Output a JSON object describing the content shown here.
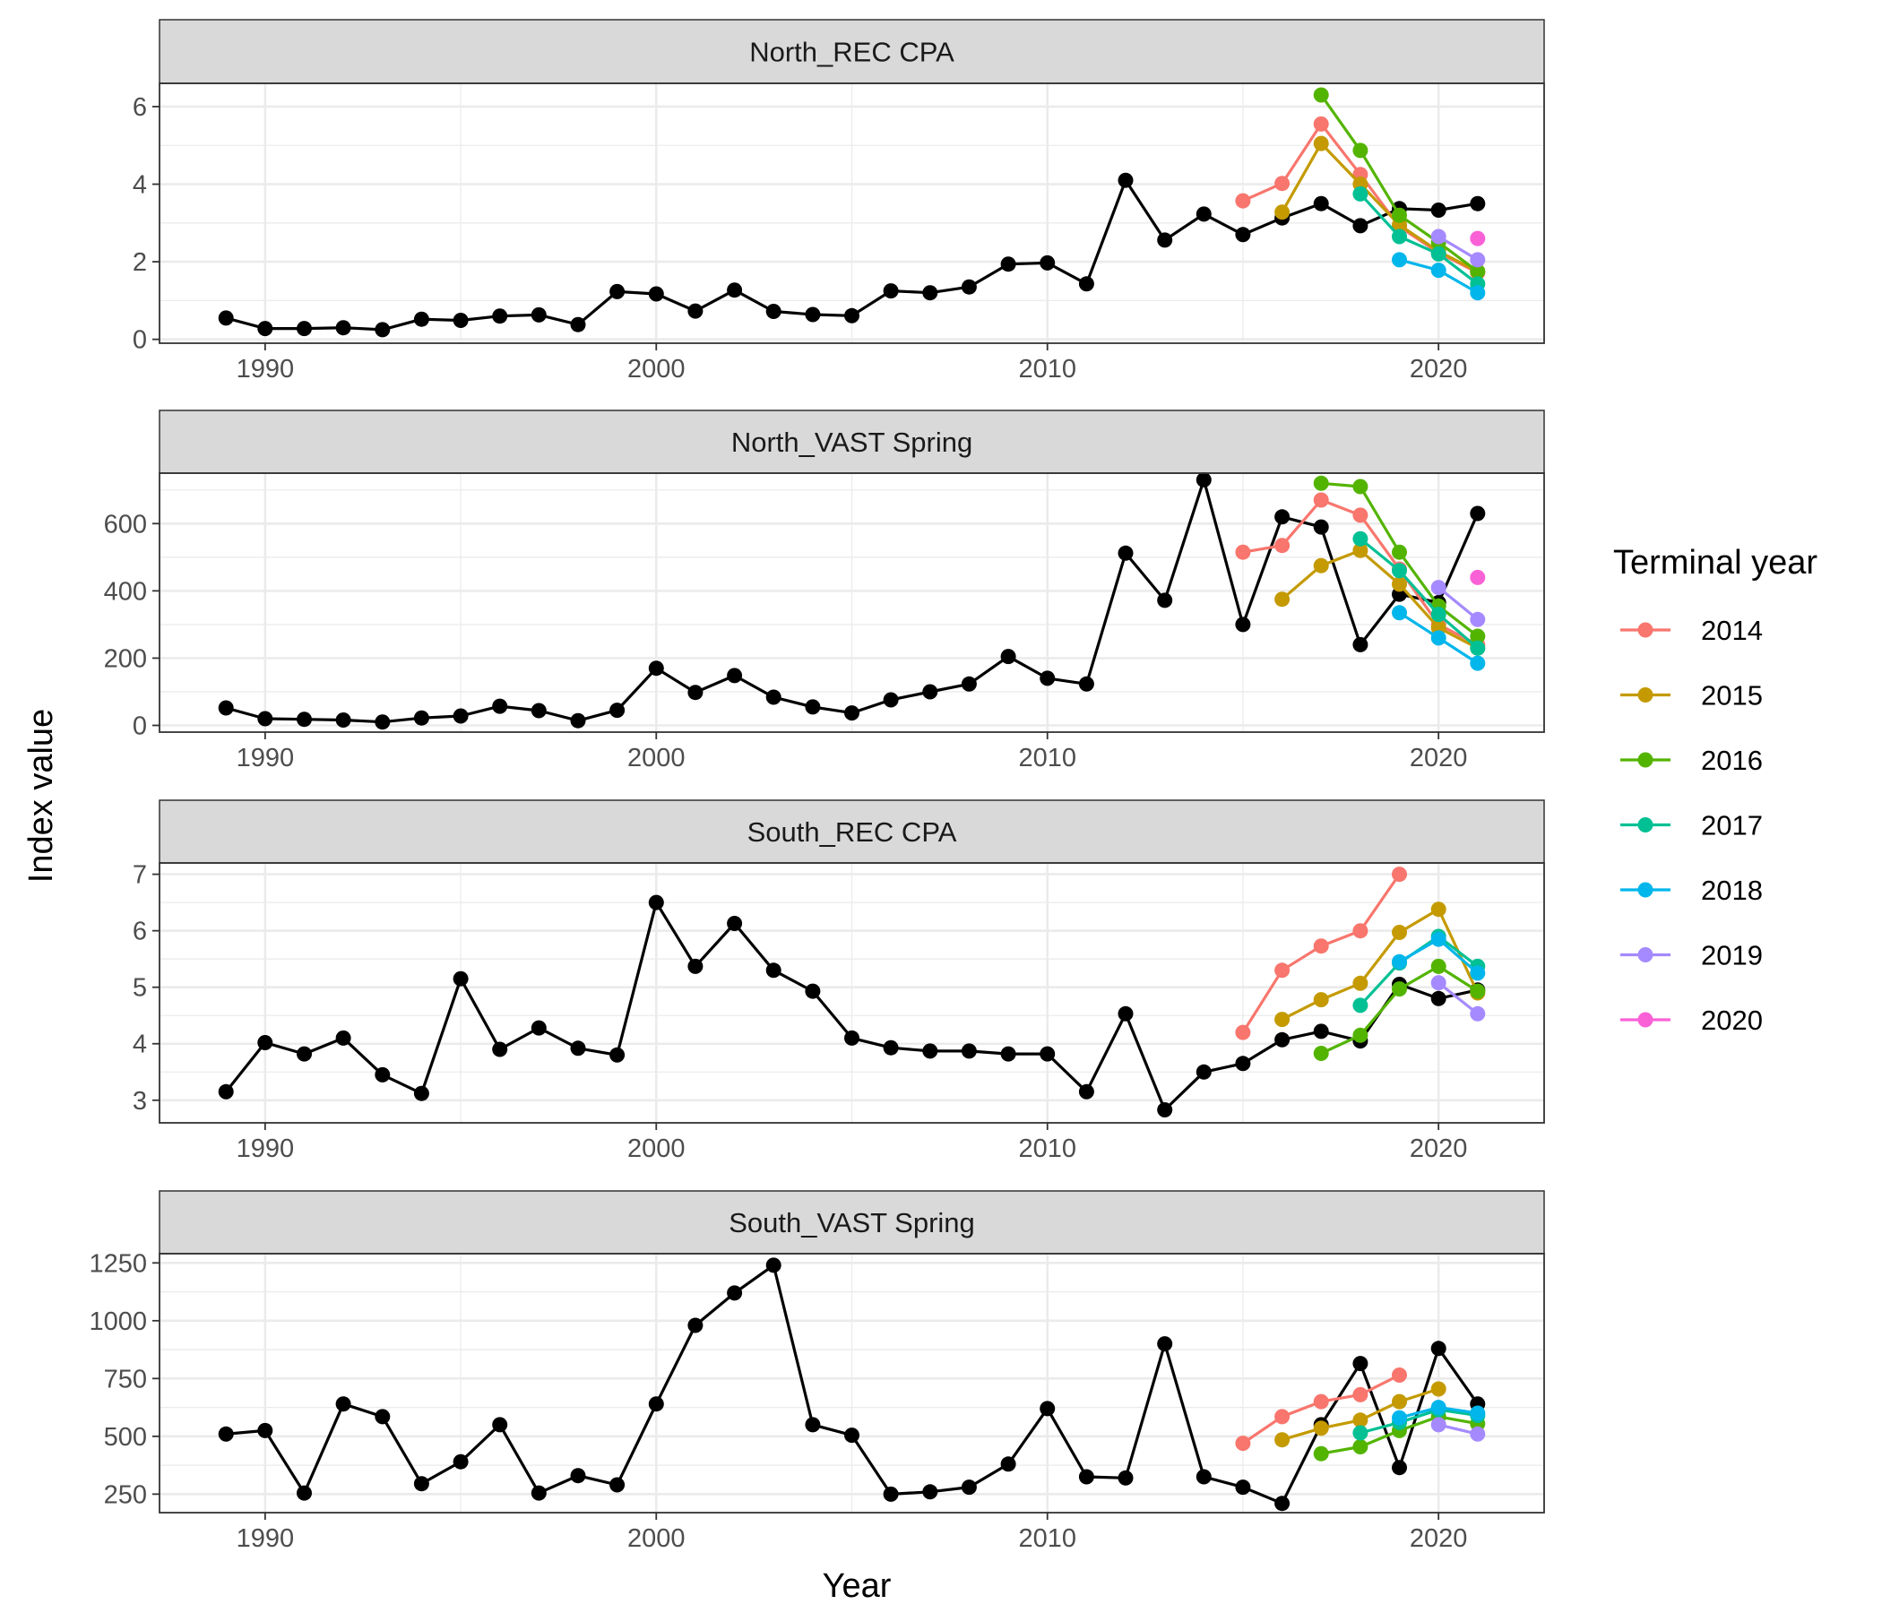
{
  "chart_data": {
    "type": "line",
    "xlabel": "Year",
    "ylabel": "Index value",
    "xlim": [
      1987.3,
      2022.7
    ],
    "x_ticks": [
      1990,
      2000,
      2010,
      2020
    ],
    "legend": {
      "title": "Terminal year",
      "placement": "right",
      "entries": [
        {
          "name": "2014",
          "color": "#F8766D"
        },
        {
          "name": "2015",
          "color": "#C49A00"
        },
        {
          "name": "2016",
          "color": "#53B400"
        },
        {
          "name": "2017",
          "color": "#00C094"
        },
        {
          "name": "2018",
          "color": "#00B6EB"
        },
        {
          "name": "2019",
          "color": "#A58AFF"
        },
        {
          "name": "2020",
          "color": "#FB61D7"
        }
      ]
    },
    "panels": [
      {
        "title": "North_REC CPA",
        "ylim": [
          -0.1,
          6.6
        ],
        "y_ticks": [
          0,
          2,
          4,
          6
        ],
        "main": {
          "color": "#000000",
          "x": [
            1989,
            1990,
            1991,
            1992,
            1993,
            1994,
            1995,
            1996,
            1997,
            1998,
            1999,
            2000,
            2001,
            2002,
            2003,
            2004,
            2005,
            2006,
            2007,
            2008,
            2009,
            2010,
            2011,
            2012,
            2013,
            2014,
            2015,
            2016,
            2017,
            2018,
            2019,
            2020,
            2021
          ],
          "values": [
            0.55,
            0.28,
            0.28,
            0.3,
            0.25,
            0.52,
            0.49,
            0.6,
            0.63,
            0.38,
            1.23,
            1.17,
            0.73,
            1.27,
            0.72,
            0.64,
            0.61,
            1.25,
            1.2,
            1.35,
            1.94,
            1.97,
            1.43,
            4.1,
            2.56,
            3.23,
            2.7,
            3.13,
            3.5,
            2.93,
            3.37,
            3.33,
            3.5
          ]
        },
        "series": [
          {
            "name": "2014",
            "x": [
              2015,
              2016,
              2017,
              2018,
              2019,
              2020,
              2021
            ],
            "values": [
              3.57,
              4.02,
              5.55,
              4.25,
              2.9,
              2.23,
              1.72
            ]
          },
          {
            "name": "2015",
            "x": [
              2016,
              2017,
              2018,
              2019,
              2020,
              2021
            ],
            "values": [
              3.28,
              5.05,
              4.0,
              2.95,
              2.27,
              1.75
            ]
          },
          {
            "name": "2016",
            "x": [
              2017,
              2018,
              2019,
              2020,
              2021
            ],
            "values": [
              6.3,
              4.87,
              3.2,
              2.5,
              1.75
            ]
          },
          {
            "name": "2017",
            "x": [
              2018,
              2019,
              2020,
              2021
            ],
            "values": [
              3.75,
              2.65,
              2.2,
              1.43
            ]
          },
          {
            "name": "2018",
            "x": [
              2019,
              2020,
              2021
            ],
            "values": [
              2.05,
              1.78,
              1.2
            ]
          },
          {
            "name": "2019",
            "x": [
              2020,
              2021
            ],
            "values": [
              2.65,
              2.05
            ]
          },
          {
            "name": "2020",
            "x": [
              2021
            ],
            "values": [
              2.6
            ]
          }
        ]
      },
      {
        "title": "North_VAST Spring",
        "ylim": [
          -20,
          750
        ],
        "y_ticks": [
          0,
          200,
          400,
          600
        ],
        "main": {
          "color": "#000000",
          "x": [
            1989,
            1990,
            1991,
            1992,
            1993,
            1994,
            1995,
            1996,
            1997,
            1998,
            1999,
            2000,
            2001,
            2002,
            2003,
            2004,
            2005,
            2006,
            2007,
            2008,
            2009,
            2010,
            2011,
            2012,
            2013,
            2014,
            2015,
            2016,
            2017,
            2018,
            2019,
            2020,
            2021
          ],
          "values": [
            52,
            20,
            18,
            16,
            10,
            22,
            28,
            57,
            44,
            14,
            45,
            170,
            98,
            148,
            84,
            55,
            37,
            76,
            100,
            123,
            205,
            140,
            123,
            512,
            372,
            730,
            300,
            620,
            590,
            240,
            390,
            365,
            630
          ]
        },
        "series": [
          {
            "name": "2014",
            "x": [
              2015,
              2016,
              2017,
              2018,
              2019,
              2020,
              2021
            ],
            "values": [
              515,
              535,
              670,
              625,
              465,
              300,
              240
            ]
          },
          {
            "name": "2015",
            "x": [
              2016,
              2017,
              2018,
              2019,
              2020,
              2021
            ],
            "values": [
              375,
              475,
              520,
              420,
              290,
              230
            ]
          },
          {
            "name": "2016",
            "x": [
              2017,
              2018,
              2019,
              2020,
              2021
            ],
            "values": [
              720,
              710,
              515,
              355,
              265
            ]
          },
          {
            "name": "2017",
            "x": [
              2018,
              2019,
              2020,
              2021
            ],
            "values": [
              555,
              460,
              330,
              230
            ]
          },
          {
            "name": "2018",
            "x": [
              2019,
              2020,
              2021
            ],
            "values": [
              335,
              260,
              185
            ]
          },
          {
            "name": "2019",
            "x": [
              2020,
              2021
            ],
            "values": [
              410,
              315
            ]
          },
          {
            "name": "2020",
            "x": [
              2021
            ],
            "values": [
              440
            ]
          }
        ]
      },
      {
        "title": "South_REC CPA",
        "ylim": [
          2.6,
          7.2
        ],
        "y_ticks": [
          3,
          4,
          5,
          6,
          7
        ],
        "main": {
          "color": "#000000",
          "x": [
            1989,
            1990,
            1991,
            1992,
            1993,
            1994,
            1995,
            1996,
            1997,
            1998,
            1999,
            2000,
            2001,
            2002,
            2003,
            2004,
            2005,
            2006,
            2007,
            2008,
            2009,
            2010,
            2011,
            2012,
            2013,
            2014,
            2015,
            2016,
            2017,
            2018,
            2019,
            2020,
            2021
          ],
          "values": [
            3.15,
            4.02,
            3.82,
            4.1,
            3.45,
            3.12,
            5.15,
            3.9,
            4.28,
            3.92,
            3.8,
            6.5,
            5.37,
            6.13,
            5.3,
            4.93,
            4.1,
            3.93,
            3.87,
            3.87,
            3.82,
            3.82,
            3.15,
            4.53,
            2.83,
            3.5,
            3.65,
            4.07,
            4.22,
            4.05,
            5.05,
            4.8,
            4.95
          ]
        },
        "series": [
          {
            "name": "2014",
            "x": [
              2015,
              2016,
              2017,
              2018,
              2019
            ],
            "values": [
              4.2,
              5.3,
              5.73,
              6.0,
              7.0
            ]
          },
          {
            "name": "2015",
            "x": [
              2016,
              2017,
              2018,
              2019,
              2020,
              2021
            ],
            "values": [
              4.43,
              4.78,
              5.07,
              5.97,
              6.38,
              4.9
            ]
          },
          {
            "name": "2016",
            "x": [
              2017,
              2018,
              2019,
              2020,
              2021
            ],
            "values": [
              3.83,
              4.15,
              4.97,
              5.37,
              4.93
            ]
          },
          {
            "name": "2017",
            "x": [
              2018,
              2019,
              2020,
              2021
            ],
            "values": [
              4.68,
              5.43,
              5.9,
              5.37
            ]
          },
          {
            "name": "2018",
            "x": [
              2019,
              2020,
              2021
            ],
            "values": [
              5.45,
              5.85,
              5.25
            ]
          },
          {
            "name": "2019",
            "x": [
              2020,
              2021
            ],
            "values": [
              5.08,
              4.53
            ]
          }
        ]
      },
      {
        "title": "South_VAST Spring",
        "ylim": [
          170,
          1290
        ],
        "y_ticks": [
          250,
          500,
          750,
          1000,
          1250
        ],
        "main": {
          "color": "#000000",
          "x": [
            1989,
            1990,
            1991,
            1992,
            1993,
            1994,
            1995,
            1996,
            1997,
            1998,
            1999,
            2000,
            2001,
            2002,
            2003,
            2004,
            2005,
            2006,
            2007,
            2008,
            2009,
            2010,
            2011,
            2012,
            2013,
            2014,
            2015,
            2016,
            2017,
            2018,
            2019,
            2020,
            2021
          ],
          "values": [
            510,
            525,
            255,
            640,
            585,
            295,
            390,
            550,
            255,
            330,
            290,
            640,
            980,
            1120,
            1240,
            550,
            505,
            250,
            260,
            280,
            380,
            620,
            325,
            320,
            900,
            325,
            280,
            210,
            550,
            815,
            365,
            880,
            640
          ]
        },
        "series": [
          {
            "name": "2014",
            "x": [
              2015,
              2016,
              2017,
              2018,
              2019
            ],
            "values": [
              470,
              585,
              650,
              680,
              765
            ]
          },
          {
            "name": "2015",
            "x": [
              2016,
              2017,
              2018,
              2019,
              2020
            ],
            "values": [
              485,
              535,
              570,
              650,
              705
            ]
          },
          {
            "name": "2016",
            "x": [
              2017,
              2018,
              2019,
              2020,
              2021
            ],
            "values": [
              425,
              455,
              525,
              585,
              555
            ]
          },
          {
            "name": "2017",
            "x": [
              2018,
              2019,
              2020,
              2021
            ],
            "values": [
              515,
              560,
              615,
              590
            ]
          },
          {
            "name": "2018",
            "x": [
              2019,
              2020,
              2021
            ],
            "values": [
              580,
              625,
              600
            ]
          },
          {
            "name": "2019",
            "x": [
              2020,
              2021
            ],
            "values": [
              550,
              510
            ]
          }
        ]
      }
    ]
  }
}
